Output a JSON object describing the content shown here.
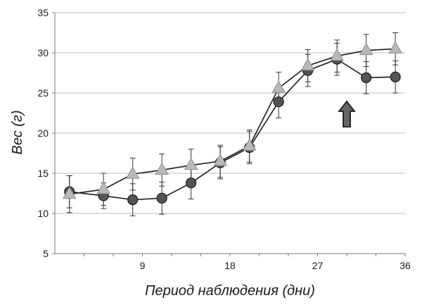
{
  "chart_data": {
    "type": "line",
    "title": "",
    "xlabel": "Период наблюдения (дни)",
    "ylabel": "Вес (г)",
    "xlim": [
      0,
      36
    ],
    "ylim": [
      5,
      35
    ],
    "xticks": [
      9,
      18,
      27,
      36
    ],
    "yticks": [
      5,
      10,
      15,
      20,
      25,
      30,
      35
    ],
    "grid": "horizontal",
    "legend": "none",
    "annotation": "up-arrow",
    "annotation_x": 30,
    "colors": {
      "circle_fill": "#555555",
      "triangle_fill": "#b9b9b9",
      "line": "#1a1a1a",
      "grid": "#bdbdbd",
      "arrow": "#666666"
    },
    "series": [
      {
        "marker": "circle",
        "x": [
          1.5,
          5,
          8,
          11,
          14,
          17,
          20,
          23,
          26,
          29,
          32,
          35
        ],
        "y": [
          12.7,
          12.2,
          11.7,
          11.9,
          13.8,
          16.3,
          18.2,
          23.9,
          27.8,
          29.2,
          26.9,
          27.0
        ],
        "error": [
          2.0,
          1.6,
          2.0,
          2.0,
          2.0,
          2.0,
          2.0,
          2.0,
          2.0,
          2.0,
          2.0,
          2.0
        ]
      },
      {
        "marker": "triangle",
        "x": [
          1.5,
          5,
          8,
          11,
          14,
          17,
          20,
          23,
          26,
          29,
          32,
          35
        ],
        "y": [
          12.4,
          13.0,
          14.9,
          15.4,
          16.0,
          16.5,
          18.4,
          25.6,
          28.4,
          29.6,
          30.3,
          30.5
        ],
        "error": [
          2.3,
          2.0,
          2.0,
          2.0,
          2.0,
          2.0,
          2.0,
          2.0,
          2.0,
          2.0,
          2.0,
          2.0
        ]
      }
    ]
  }
}
